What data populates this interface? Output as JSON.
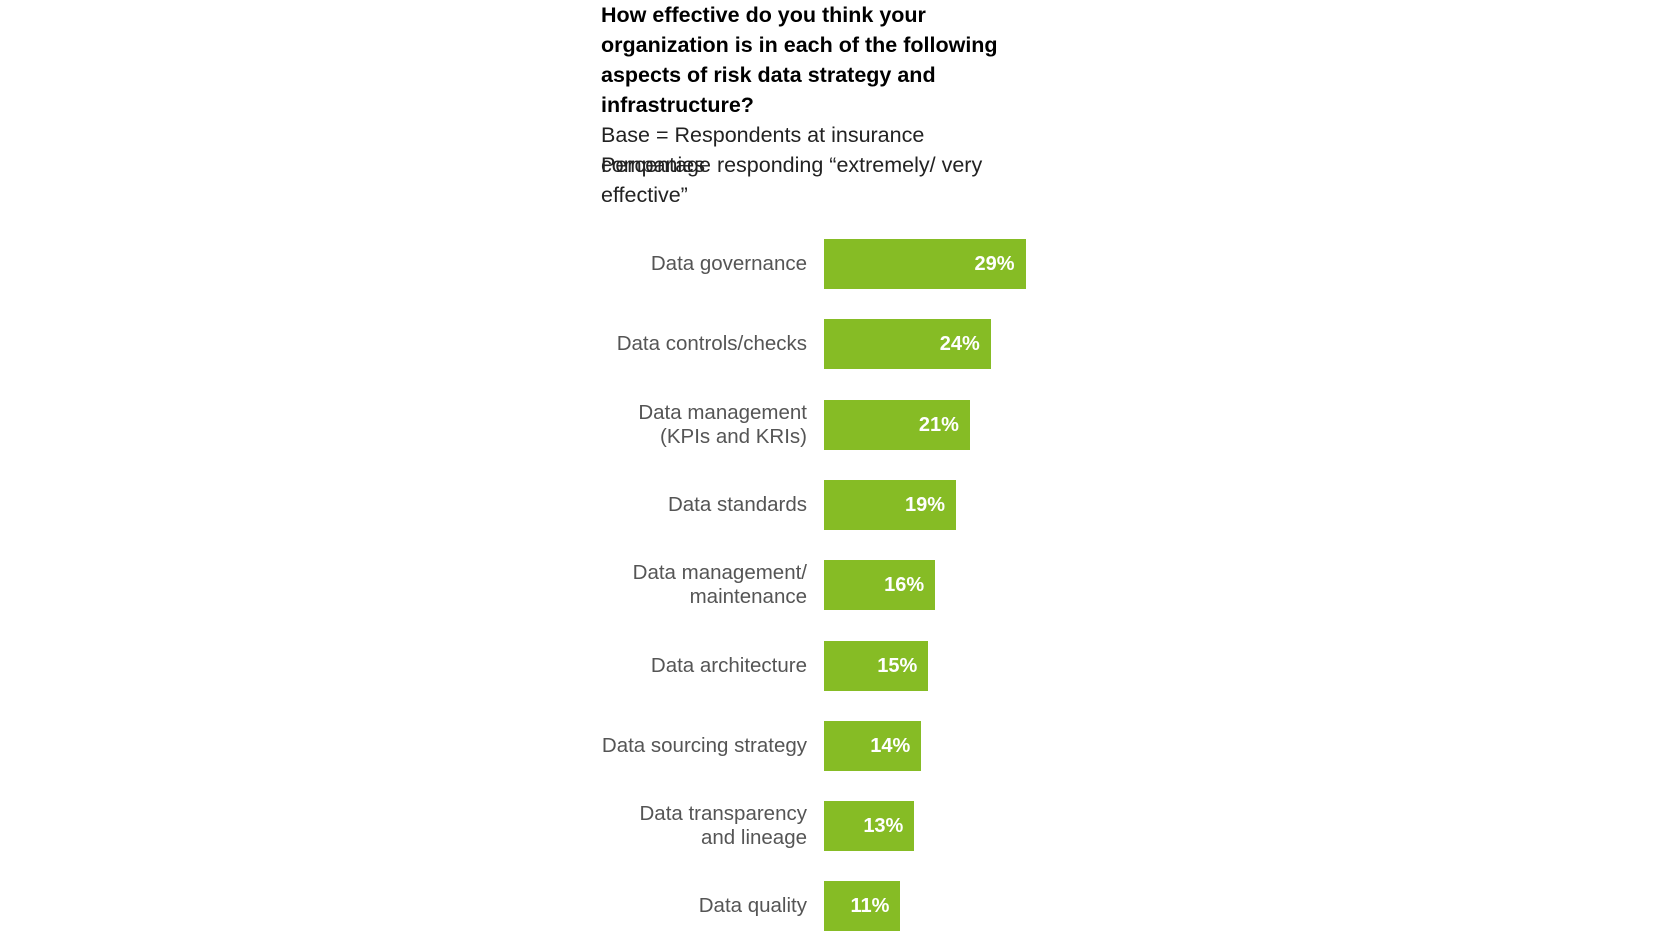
{
  "chart_data": {
    "type": "bar",
    "title": "How effective do you think your organization is in each of the following aspects of risk data strategy and infrastructure?",
    "subtitle": [
      "Base = Respondents at insurance companies",
      "Percentage responding “extremely/ very effective”"
    ],
    "categories": [
      "Data governance",
      "Data controls/checks",
      "Data management\n(KPIs and KRIs)",
      "Data standards",
      "Data management/\nmaintenance",
      "Data architecture",
      "Data sourcing strategy",
      "Data transparency\nand lineage",
      "Data quality"
    ],
    "values": [
      29,
      24,
      21,
      19,
      16,
      15,
      14,
      13,
      11
    ],
    "value_labels": [
      "29%",
      "24%",
      "21%",
      "19%",
      "16%",
      "15%",
      "14%",
      "13%",
      "11%"
    ],
    "color": "#86bc25"
  }
}
